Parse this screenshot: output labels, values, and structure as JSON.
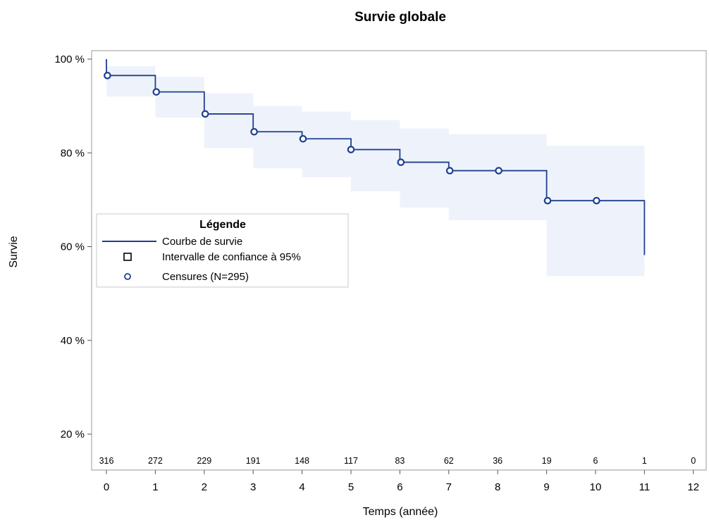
{
  "chart_data": {
    "type": "line",
    "title": "Survie globale",
    "xlabel": "Temps (année)",
    "ylabel": "Survie",
    "xlim": [
      0,
      12
    ],
    "ylim": [
      0.15,
      1.0
    ],
    "x_ticks": [
      "0",
      "1",
      "2",
      "3",
      "4",
      "5",
      "6",
      "7",
      "8",
      "9",
      "10",
      "11",
      "12"
    ],
    "y_ticks": [
      {
        "value": 1.0,
        "label": "100 %"
      },
      {
        "value": 0.8,
        "label": "80 %"
      },
      {
        "value": 0.6,
        "label": "60 %"
      },
      {
        "value": 0.4,
        "label": "40 %"
      },
      {
        "value": 0.2,
        "label": "20 %"
      }
    ],
    "at_risk": [
      {
        "time": 0,
        "n": "316"
      },
      {
        "time": 1,
        "n": "272"
      },
      {
        "time": 2,
        "n": "229"
      },
      {
        "time": 3,
        "n": "191"
      },
      {
        "time": 4,
        "n": "148"
      },
      {
        "time": 5,
        "n": "117"
      },
      {
        "time": 6,
        "n": "83"
      },
      {
        "time": 7,
        "n": "62"
      },
      {
        "time": 8,
        "n": "36"
      },
      {
        "time": 9,
        "n": "19"
      },
      {
        "time": 10,
        "n": "6"
      },
      {
        "time": 11,
        "n": "1"
      },
      {
        "time": 12,
        "n": "0"
      }
    ],
    "survival_steps": [
      {
        "start": 0,
        "end": 1,
        "s": 0.965,
        "lcl": 0.92,
        "ucl": 0.985
      },
      {
        "start": 1,
        "end": 2,
        "s": 0.93,
        "lcl": 0.875,
        "ucl": 0.962
      },
      {
        "start": 2,
        "end": 3,
        "s": 0.883,
        "lcl": 0.81,
        "ucl": 0.927
      },
      {
        "start": 3,
        "end": 4,
        "s": 0.845,
        "lcl": 0.767,
        "ucl": 0.9
      },
      {
        "start": 4,
        "end": 5,
        "s": 0.83,
        "lcl": 0.748,
        "ucl": 0.888
      },
      {
        "start": 5,
        "end": 6,
        "s": 0.807,
        "lcl": 0.718,
        "ucl": 0.87
      },
      {
        "start": 6,
        "end": 7,
        "s": 0.78,
        "lcl": 0.683,
        "ucl": 0.852
      },
      {
        "start": 7,
        "end": 9,
        "s": 0.762,
        "lcl": 0.656,
        "ucl": 0.84
      },
      {
        "start": 9,
        "end": 11,
        "s": 0.698,
        "lcl": 0.537,
        "ucl": 0.815
      }
    ],
    "initial_drop": {
      "time": 0,
      "from": 1.0,
      "to": 0.965
    },
    "final_drop": {
      "time": 11,
      "from": 0.698,
      "to": 0.582
    },
    "censored": [
      {
        "x": 0.02,
        "y": 0.965
      },
      {
        "x": 1.02,
        "y": 0.93
      },
      {
        "x": 2.02,
        "y": 0.883
      },
      {
        "x": 3.02,
        "y": 0.845
      },
      {
        "x": 4.02,
        "y": 0.83
      },
      {
        "x": 5.0,
        "y": 0.807
      },
      {
        "x": 6.02,
        "y": 0.78
      },
      {
        "x": 7.02,
        "y": 0.762
      },
      {
        "x": 8.02,
        "y": 0.762
      },
      {
        "x": 9.02,
        "y": 0.698
      },
      {
        "x": 10.02,
        "y": 0.698
      }
    ],
    "legend": {
      "title": "Légende",
      "position": "left",
      "items": [
        {
          "label": "Courbe de survie",
          "symbol": "line"
        },
        {
          "label": "Intervalle de confiance à 95%",
          "symbol": "square"
        },
        {
          "label": "Censures (N=295)",
          "symbol": "circle"
        }
      ]
    },
    "grid": false,
    "colors": {
      "curve": "#1f3e8f",
      "ci_band": "#eef3fb",
      "frame": "#9a9a9a",
      "marker": "#1f3e8f"
    }
  }
}
